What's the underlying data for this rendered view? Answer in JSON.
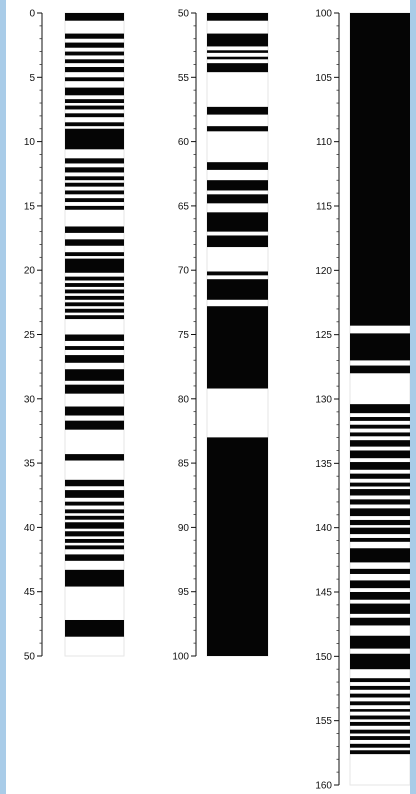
{
  "chart_data": {
    "type": "diagram",
    "description_free": true,
    "columns": [
      {
        "axis_range": [
          0,
          50
        ],
        "ticks": [
          "0",
          "5",
          "10",
          "15",
          "20",
          "25",
          "30",
          "35",
          "40",
          "45",
          "50"
        ],
        "black_intervals": [
          [
            0,
            0.6
          ],
          [
            1.6,
            2.0
          ],
          [
            2.3,
            2.7
          ],
          [
            3.0,
            3.3
          ],
          [
            3.6,
            3.9
          ],
          [
            4.2,
            4.6
          ],
          [
            5.0,
            5.3
          ],
          [
            5.8,
            6.4
          ],
          [
            6.7,
            7.0
          ],
          [
            7.2,
            7.5
          ],
          [
            7.8,
            8.1
          ],
          [
            8.5,
            8.8
          ],
          [
            9.0,
            10.6
          ],
          [
            11.3,
            11.7
          ],
          [
            12.0,
            12.4
          ],
          [
            12.7,
            13.0
          ],
          [
            13.2,
            13.5
          ],
          [
            13.8,
            14.1
          ],
          [
            14.4,
            14.7
          ],
          [
            15.0,
            15.3
          ],
          [
            16.6,
            17.1
          ],
          [
            17.6,
            18.1
          ],
          [
            18.6,
            18.9
          ],
          [
            19.1,
            20.2
          ],
          [
            20.5,
            20.8
          ],
          [
            21.0,
            21.3
          ],
          [
            21.5,
            21.8
          ],
          [
            22.0,
            22.3
          ],
          [
            22.5,
            22.8
          ],
          [
            23.0,
            23.3
          ],
          [
            23.5,
            23.8
          ],
          [
            25.0,
            25.5
          ],
          [
            25.9,
            26.2
          ],
          [
            26.6,
            27.2
          ],
          [
            27.7,
            28.6
          ],
          [
            28.9,
            29.6
          ],
          [
            30.6,
            31.3
          ],
          [
            31.7,
            32.4
          ],
          [
            34.3,
            34.8
          ],
          [
            36.3,
            36.8
          ],
          [
            37.1,
            37.7
          ],
          [
            38.0,
            38.3
          ],
          [
            38.6,
            38.9
          ],
          [
            39.1,
            39.4
          ],
          [
            39.6,
            40.1
          ],
          [
            40.3,
            40.7
          ],
          [
            40.9,
            41.2
          ],
          [
            41.4,
            41.7
          ],
          [
            42.1,
            42.6
          ],
          [
            43.3,
            44.6
          ],
          [
            47.2,
            48.5
          ]
        ]
      },
      {
        "axis_range": [
          50,
          100
        ],
        "ticks": [
          "50",
          "55",
          "60",
          "65",
          "70",
          "75",
          "80",
          "85",
          "90",
          "95",
          "100"
        ],
        "black_intervals": [
          [
            50,
            50.6
          ],
          [
            51.6,
            52.6
          ],
          [
            52.9,
            53.1
          ],
          [
            53.4,
            53.6
          ],
          [
            53.9,
            54.6
          ],
          [
            57.3,
            57.9
          ],
          [
            58.8,
            59.2
          ],
          [
            61.6,
            62.2
          ],
          [
            63.0,
            63.8
          ],
          [
            64.1,
            64.8
          ],
          [
            65.5,
            67.0
          ],
          [
            67.3,
            68.2
          ],
          [
            70.1,
            70.4
          ],
          [
            70.7,
            72.3
          ],
          [
            72.8,
            79.2
          ],
          [
            83.0,
            100
          ]
        ]
      },
      {
        "axis_range": [
          100,
          160
        ],
        "ticks": [
          "100",
          "105",
          "110",
          "115",
          "120",
          "125",
          "130",
          "135",
          "140",
          "145",
          "150",
          "155",
          "160"
        ],
        "black_intervals": [
          [
            100,
            124.3
          ],
          [
            124.9,
            127.0
          ],
          [
            127.4,
            128.0
          ],
          [
            130.4,
            131.1
          ],
          [
            131.4,
            131.7
          ],
          [
            132.0,
            132.3
          ],
          [
            132.6,
            132.9
          ],
          [
            133.2,
            133.7
          ],
          [
            134.0,
            134.6
          ],
          [
            134.9,
            135.5
          ],
          [
            135.8,
            136.2
          ],
          [
            136.5,
            136.8
          ],
          [
            137.0,
            137.5
          ],
          [
            137.8,
            138.2
          ],
          [
            138.5,
            139.1
          ],
          [
            139.4,
            139.8
          ],
          [
            140.0,
            140.5
          ],
          [
            140.8,
            141.1
          ],
          [
            141.6,
            142.7
          ],
          [
            143.2,
            143.6
          ],
          [
            144.1,
            144.7
          ],
          [
            145.0,
            145.6
          ],
          [
            145.9,
            146.7
          ],
          [
            147.0,
            147.6
          ],
          [
            148.4,
            149.4
          ],
          [
            149.8,
            151.0
          ],
          [
            151.7,
            152.0
          ],
          [
            152.3,
            152.6
          ],
          [
            152.9,
            153.2
          ],
          [
            153.5,
            153.8
          ],
          [
            154.1,
            154.3
          ],
          [
            154.6,
            154.9
          ],
          [
            155.1,
            155.4
          ],
          [
            155.7,
            156.0
          ],
          [
            156.2,
            156.5
          ],
          [
            156.8,
            157.1
          ],
          [
            157.3,
            157.6
          ]
        ]
      }
    ]
  }
}
